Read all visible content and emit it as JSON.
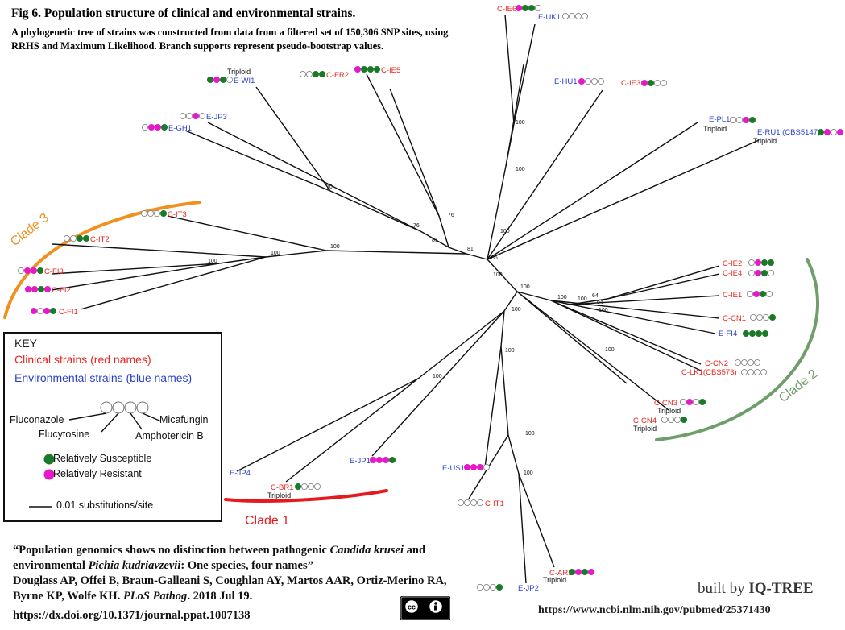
{
  "header": {
    "title": "Fig 6. Population structure of clinical and environmental strains.",
    "caption": "A phylogenetic tree of strains was constructed from data from a filtered set of 150,306 SNP sites, using RRHS and Maximum Likelihood. Branch supports represent pseudo-bootstrap values."
  },
  "colors": {
    "clinical": "#e8251f",
    "environmental": "#2a3fd0",
    "susceptible": "#1a7a2a",
    "resistant": "#e619c8",
    "clade1": "#e8191e",
    "clade2": "#6f9e6a",
    "clade3": "#f0901e"
  },
  "leaves": [
    {
      "name": "C-IE6",
      "type": "clinical",
      "ploidy": "",
      "drugs": [
        "R",
        "S",
        "S",
        "-"
      ]
    },
    {
      "name": "E-UK1",
      "type": "environmental",
      "ploidy": "",
      "drugs": [
        "-",
        "-",
        "-",
        "-"
      ]
    },
    {
      "name": "E-HU1",
      "type": "environmental",
      "ploidy": "",
      "drugs": [
        "R",
        "-",
        "-",
        "-"
      ]
    },
    {
      "name": "C-IE3",
      "type": "clinical",
      "ploidy": "",
      "drugs": [
        "R",
        "S",
        "-",
        "-"
      ]
    },
    {
      "name": "E-PL1",
      "type": "environmental",
      "ploidy": "Triploid",
      "drugs": [
        "-",
        "-",
        "R",
        "S"
      ]
    },
    {
      "name": "E-RU1 (CBS5147)",
      "type": "environmental",
      "ploidy": "Triploid",
      "drugs": [
        "S",
        "R",
        "-",
        "R"
      ]
    },
    {
      "name": "C-IE2",
      "type": "clinical",
      "ploidy": "",
      "drugs": [
        "-",
        "R",
        "S",
        "S"
      ]
    },
    {
      "name": "C-IE4",
      "type": "clinical",
      "ploidy": "",
      "drugs": [
        "-",
        "R",
        "S",
        "-"
      ]
    },
    {
      "name": "C-IE1",
      "type": "clinical",
      "ploidy": "",
      "drugs": [
        "-",
        "R",
        "S",
        "-"
      ]
    },
    {
      "name": "C-CN1",
      "type": "clinical",
      "ploidy": "",
      "drugs": [
        "-",
        "-",
        "-",
        "S"
      ]
    },
    {
      "name": "E-FI4",
      "type": "environmental",
      "ploidy": "",
      "drugs": [
        "S",
        "S",
        "S",
        "S"
      ]
    },
    {
      "name": "C-CN2",
      "type": "clinical",
      "ploidy": "",
      "drugs": [
        "-",
        "-",
        "-",
        "-"
      ]
    },
    {
      "name": "C-LK1(CBS573)",
      "type": "clinical",
      "ploidy": "",
      "drugs": [
        "-",
        "-",
        "-",
        "-"
      ]
    },
    {
      "name": "C-CN3",
      "type": "clinical",
      "ploidy": "Triploid",
      "drugs": [
        "-",
        "R",
        "-",
        "S"
      ]
    },
    {
      "name": "C-CN4",
      "type": "clinical",
      "ploidy": "Triploid",
      "drugs": [
        "-",
        "-",
        "-",
        "S"
      ]
    },
    {
      "name": "C-AR1",
      "type": "clinical",
      "ploidy": "Triploid",
      "drugs": [
        "S",
        "R",
        "S",
        "R"
      ]
    },
    {
      "name": "E-JP2",
      "type": "environmental",
      "ploidy": "",
      "drugs": [
        "-",
        "-",
        "-",
        "S"
      ]
    },
    {
      "name": "C-IT1",
      "type": "clinical",
      "ploidy": "",
      "drugs": [
        "-",
        "-",
        "-",
        "-"
      ]
    },
    {
      "name": "E-US1",
      "type": "environmental",
      "ploidy": "",
      "drugs": [
        "R",
        "R",
        "R",
        "-"
      ]
    },
    {
      "name": "E-JP1",
      "type": "environmental",
      "ploidy": "",
      "drugs": [
        "R",
        "R",
        "R",
        "S"
      ]
    },
    {
      "name": "C-BR1",
      "type": "clinical",
      "ploidy": "Triploid",
      "drugs": [
        "S",
        "-",
        "-",
        "-"
      ]
    },
    {
      "name": "E-JP4",
      "type": "environmental",
      "ploidy": "",
      "drugs": []
    },
    {
      "name": "C-FI1",
      "type": "clinical",
      "ploidy": "",
      "drugs": [
        "R",
        "-",
        "R",
        "S"
      ]
    },
    {
      "name": "C-FI2",
      "type": "clinical",
      "ploidy": "",
      "drugs": [
        "R",
        "R",
        "S",
        "R"
      ]
    },
    {
      "name": "C-FI3",
      "type": "clinical",
      "ploidy": "",
      "drugs": [
        "-",
        "R",
        "R",
        "S"
      ]
    },
    {
      "name": "C-IT2",
      "type": "clinical",
      "ploidy": "",
      "drugs": [
        "-",
        "-",
        "S",
        "S"
      ]
    },
    {
      "name": "C-IT3",
      "type": "clinical",
      "ploidy": "",
      "drugs": [
        "-",
        "-",
        "-",
        "S"
      ]
    },
    {
      "name": "E-GH1",
      "type": "environmental",
      "ploidy": "",
      "drugs": [
        "-",
        "R",
        "R",
        "S"
      ]
    },
    {
      "name": "E-JP3",
      "type": "environmental",
      "ploidy": "",
      "drugs": [
        "-",
        "-",
        "R",
        "-"
      ]
    },
    {
      "name": "E-WI1",
      "type": "environmental",
      "ploidy": "Triploid",
      "drugs": [
        "S",
        "R",
        "S",
        "-"
      ]
    },
    {
      "name": "C-FR2",
      "type": "clinical",
      "ploidy": "",
      "drugs": [
        "-",
        "-",
        "S",
        "S"
      ]
    },
    {
      "name": "C-IE5",
      "type": "clinical",
      "ploidy": "",
      "drugs": [
        "R",
        "S",
        "S",
        "S"
      ]
    }
  ],
  "bootstrap_labels": [
    "100",
    "100",
    "100",
    "81",
    "86",
    "100",
    "100",
    "76",
    "81",
    "76",
    "70",
    "100",
    "100",
    "100",
    "100",
    "64",
    "64",
    "100",
    "100",
    "100",
    "100",
    "100",
    "100"
  ],
  "clades": [
    {
      "name": "Clade 1"
    },
    {
      "name": "Clade 2"
    },
    {
      "name": "Clade 3"
    }
  ],
  "key": {
    "title": "KEY",
    "clinical_label": "Clinical strains (red names)",
    "environmental_label": "Environmental strains (blue names)",
    "drugs": [
      "Fluconazole",
      "Flucytosine",
      "Amphotericin B",
      "Micafungin"
    ],
    "susceptible_label": "Relatively Susceptible",
    "resistant_label": "Relatively Resistant",
    "scale_label": "0.01 substitutions/site"
  },
  "citation": {
    "line1_a": "“Population genomics shows no distinction between pathogenic ",
    "line1_b": "Candida krusei",
    "line1_c": " and environmental ",
    "line1_d": "Pichia kudriavzevii",
    "line1_e": ": One species, four names”",
    "authors": "Douglass AP, Offei B, Braun-Galleani S, Coughlan AY, Martos AAR, Ortiz-Merino RA, Byrne KP, Wolfe KH. ",
    "journal": "PLoS Pathog",
    "date": ". 2018 Jul 19.",
    "doi": "https://dx.doi.org/10.1371/journal.ppat.1007138"
  },
  "license_badge": "CC BY",
  "footer": {
    "built_by_prefix": "built by ",
    "built_by_tool": "IQ-TREE",
    "pubmed_url": "https://www.ncbi.nlm.nih.gov/pubmed/25371430"
  }
}
